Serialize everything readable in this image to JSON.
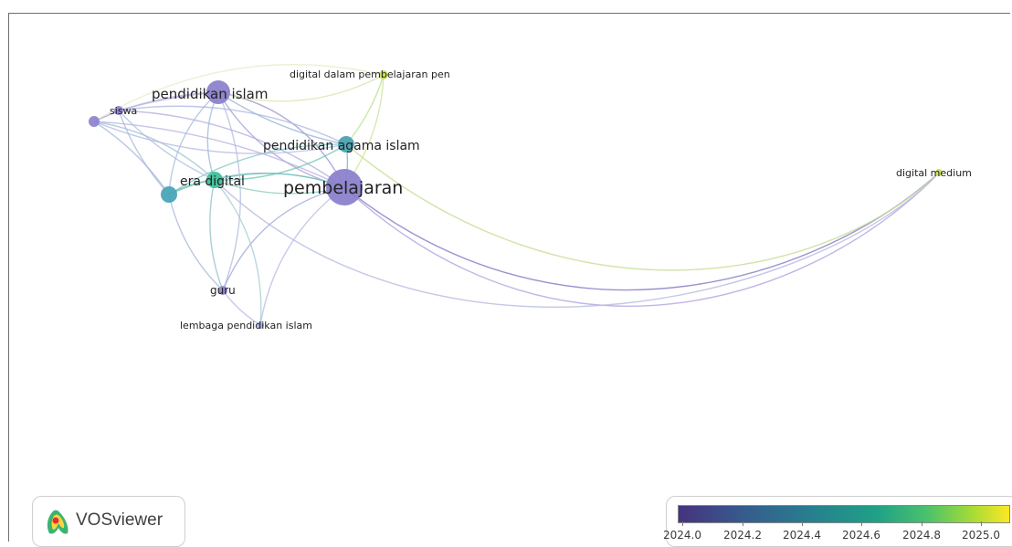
{
  "app": {
    "name": "VOSviewer"
  },
  "network": {
    "nodes": [
      {
        "id": "pembelajaran",
        "label": "pembelajaran",
        "year": 2024.05,
        "size": "largest"
      },
      {
        "id": "pendidikan_islam",
        "label": "pendidikan islam",
        "year": 2024.1,
        "size": "large"
      },
      {
        "id": "pendidikan_agama_islam",
        "label": "pendidikan agama islam",
        "year": 2024.45,
        "size": "medium"
      },
      {
        "id": "era_digital",
        "label": "era digital",
        "year": 2024.6,
        "size": "medium"
      },
      {
        "id": "siswa",
        "label": "siswa",
        "year": 2024.1,
        "size": "small"
      },
      {
        "id": "guru",
        "label": "guru",
        "year": 2024.1,
        "size": "small"
      },
      {
        "id": "lembaga_pendidikan_islam",
        "label": "lembaga pendidikan islam",
        "year": 2024.2,
        "size": "small"
      },
      {
        "id": "digital_dalam_pembelajaran",
        "label": "digital dalam pembelajaran pen",
        "year": 2024.9,
        "size": "small"
      },
      {
        "id": "digital_medium",
        "label": "digital medium",
        "year": 2024.9,
        "size": "small"
      }
    ]
  },
  "legend": {
    "ticks": [
      "2024.0",
      "2024.2",
      "2024.4",
      "2024.6",
      "2024.8",
      "2025.0"
    ],
    "colors": {
      "start": "#46337e",
      "mid": "#1fa187",
      "end": "#fde725"
    }
  }
}
